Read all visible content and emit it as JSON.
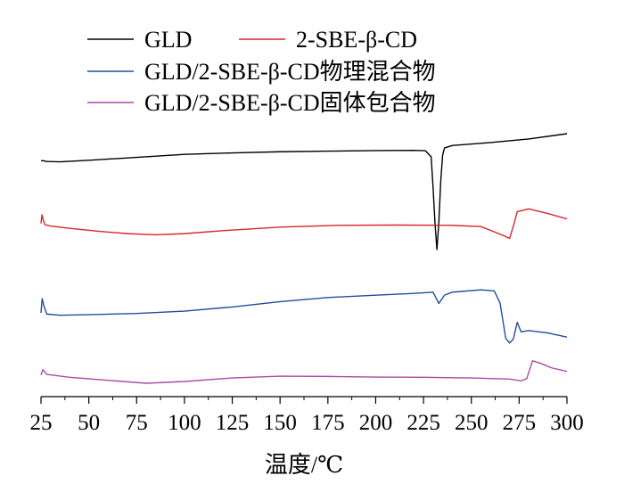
{
  "chart_data": {
    "type": "line",
    "xlabel": "温度/℃",
    "ylabel": "",
    "xlim": [
      25,
      300
    ],
    "x_ticks": [
      25,
      50,
      75,
      100,
      125,
      150,
      175,
      200,
      225,
      250,
      275,
      300
    ],
    "y_ticks_shown": false,
    "grid": false,
    "legend_position": "top",
    "series": [
      {
        "name": "GLD",
        "color": "#000000",
        "points": [
          [
            25,
            0.52
          ],
          [
            26,
            0.55
          ],
          [
            28,
            0.4
          ],
          [
            35,
            0.35
          ],
          [
            50,
            0.6
          ],
          [
            75,
            1.1
          ],
          [
            100,
            1.6
          ],
          [
            125,
            1.85
          ],
          [
            150,
            2.05
          ],
          [
            175,
            2.15
          ],
          [
            200,
            2.25
          ],
          [
            220,
            2.28
          ],
          [
            226,
            2.22
          ],
          [
            229,
            1.2
          ],
          [
            230,
            -4
          ],
          [
            231,
            -10
          ],
          [
            232,
            -14.5
          ],
          [
            233,
            -10
          ],
          [
            234,
            -3
          ],
          [
            235,
            1.5
          ],
          [
            236,
            2.7
          ],
          [
            240,
            3.1
          ],
          [
            260,
            3.6
          ],
          [
            280,
            4.2
          ],
          [
            300,
            5.1
          ]
        ]
      },
      {
        "name": "2-SBE-β-CD",
        "color": "#d62728",
        "points": [
          [
            25,
            -10.1
          ],
          [
            25.5,
            -8.6
          ],
          [
            26,
            -9.3
          ],
          [
            27,
            -10.3
          ],
          [
            30,
            -10.5
          ],
          [
            40,
            -10.9
          ],
          [
            55,
            -11.4
          ],
          [
            70,
            -11.8
          ],
          [
            85,
            -12.0
          ],
          [
            100,
            -11.8
          ],
          [
            120,
            -11.3
          ],
          [
            150,
            -10.7
          ],
          [
            180,
            -10.4
          ],
          [
            210,
            -10.35
          ],
          [
            240,
            -10.4
          ],
          [
            255,
            -10.6
          ],
          [
            262,
            -11.5
          ],
          [
            268,
            -12.3
          ],
          [
            270,
            -12.6
          ],
          [
            272,
            -10.5
          ],
          [
            274,
            -8.1
          ],
          [
            280,
            -7.6
          ],
          [
            290,
            -8.4
          ],
          [
            300,
            -9.3
          ]
        ]
      },
      {
        "name": "GLD/2-SBE-β-CD物理混合物",
        "color": "#1f4e9a",
        "points": [
          [
            25,
            -25.2
          ],
          [
            25.6,
            -22.8
          ],
          [
            26.5,
            -24.0
          ],
          [
            28,
            -25.4
          ],
          [
            35,
            -25.6
          ],
          [
            50,
            -25.5
          ],
          [
            75,
            -25.3
          ],
          [
            100,
            -24.9
          ],
          [
            125,
            -24.2
          ],
          [
            150,
            -23.3
          ],
          [
            175,
            -22.6
          ],
          [
            200,
            -22.2
          ],
          [
            220,
            -21.9
          ],
          [
            230,
            -21.7
          ],
          [
            233,
            -23.6
          ],
          [
            236,
            -22.2
          ],
          [
            240,
            -21.7
          ],
          [
            255,
            -21.3
          ],
          [
            262,
            -21.5
          ],
          [
            265,
            -23.5
          ],
          [
            268,
            -29.5
          ],
          [
            270,
            -30.3
          ],
          [
            272,
            -29.6
          ],
          [
            274,
            -26.8
          ],
          [
            276,
            -28.4
          ],
          [
            280,
            -28.2
          ],
          [
            290,
            -28.6
          ],
          [
            300,
            -29.3
          ]
        ]
      },
      {
        "name": "GLD/2-SBE-β-CD固体包合物",
        "color": "#a64ca6",
        "points": [
          [
            25,
            -35.7
          ],
          [
            26,
            -34.8
          ],
          [
            28,
            -35.6
          ],
          [
            40,
            -36.1
          ],
          [
            60,
            -36.6
          ],
          [
            80,
            -37.1
          ],
          [
            100,
            -36.8
          ],
          [
            125,
            -36.2
          ],
          [
            150,
            -35.9
          ],
          [
            175,
            -35.95
          ],
          [
            200,
            -36.05
          ],
          [
            225,
            -36.1
          ],
          [
            250,
            -36.2
          ],
          [
            270,
            -36.4
          ],
          [
            276,
            -36.7
          ],
          [
            279,
            -36.3
          ],
          [
            282,
            -33.3
          ],
          [
            286,
            -33.7
          ],
          [
            292,
            -34.5
          ],
          [
            300,
            -35.1
          ]
        ]
      }
    ]
  }
}
